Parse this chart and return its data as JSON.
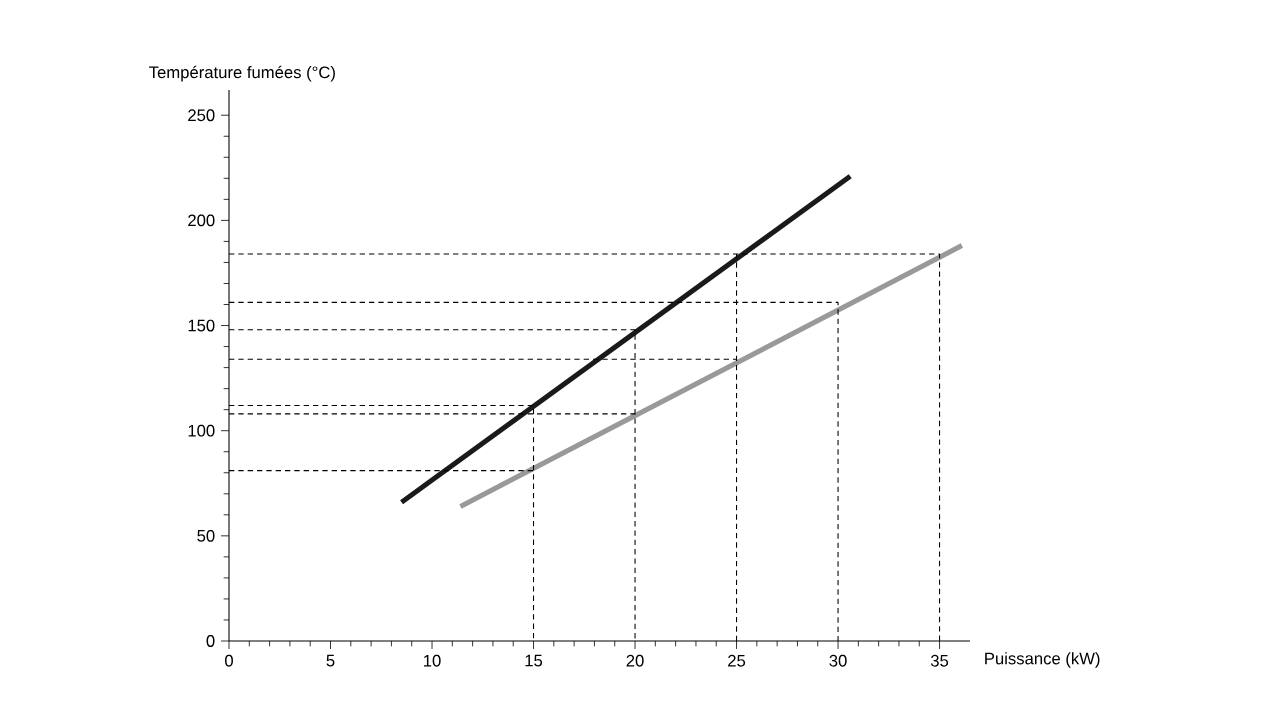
{
  "chart_data": {
    "type": "line",
    "xlabel": "Puissance (kW)",
    "ylabel": "Température fumées  (°C)",
    "xlim": [
      0,
      36.5
    ],
    "ylim": [
      0,
      262
    ],
    "xticks": [
      0,
      5,
      10,
      15,
      20,
      25,
      30,
      35
    ],
    "yticks": [
      0,
      50,
      100,
      150,
      200,
      250
    ],
    "grid": false,
    "marker": "none",
    "line_style": "solid",
    "series": [
      {
        "color": "#1a1a1a",
        "x": [
          8.5,
          30.6
        ],
        "values": [
          66,
          221
        ]
      },
      {
        "color": "#999999",
        "x": [
          11.4,
          36.1
        ],
        "values": [
          64,
          188
        ]
      },
      {
        "color": "#000000",
        "line_style": "dashed",
        "x": [
          0,
          15,
          15
        ],
        "values": [
          112,
          112,
          0
        ]
      },
      {
        "color": "#000000",
        "line_style": "dashed",
        "x": [
          0,
          15
        ],
        "values": [
          81,
          81
        ]
      },
      {
        "color": "#000000",
        "line_style": "dashed",
        "x": [
          0,
          20,
          20
        ],
        "values": [
          148,
          148,
          0
        ]
      },
      {
        "color": "#000000",
        "line_style": "dashed",
        "x": [
          0,
          20
        ],
        "values": [
          108,
          108
        ]
      },
      {
        "color": "#000000",
        "line_style": "dashed",
        "x": [
          0,
          25
        ],
        "values": [
          134,
          134
        ]
      },
      {
        "color": "#000000",
        "line_style": "dashed",
        "x": [
          25,
          25
        ],
        "values": [
          0,
          184
        ]
      },
      {
        "color": "#000000",
        "line_style": "dashed",
        "x": [
          0,
          35,
          35
        ],
        "values": [
          184,
          184,
          0
        ]
      },
      {
        "color": "#000000",
        "line_style": "dashed",
        "x": [
          0,
          30,
          30
        ],
        "values": [
          161,
          161,
          0
        ]
      }
    ]
  }
}
